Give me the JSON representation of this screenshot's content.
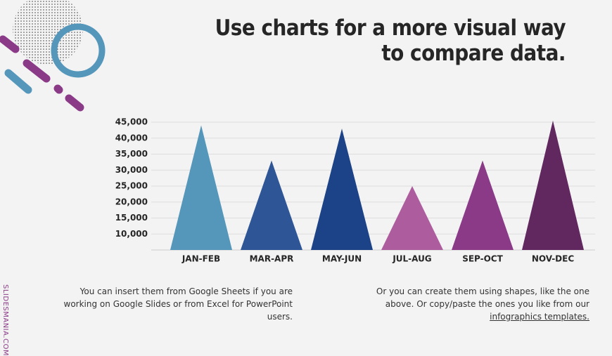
{
  "chart_data": {
    "type": "triangle-bar",
    "title": "Use charts for a more visual way to compare data.",
    "categories": [
      "JAN-FEB",
      "MAR-APR",
      "MAY-JUN",
      "JUL-AUG",
      "SEP-OCT",
      "NOV-DEC"
    ],
    "values": [
      44000,
      33000,
      43000,
      25000,
      33000,
      45500
    ],
    "colors": [
      "#5596bb",
      "#2e5596",
      "#1c4287",
      "#ad5c9e",
      "#8a3a87",
      "#61275f"
    ],
    "ylim": [
      5000,
      45000
    ],
    "yticks": [
      {
        "value": 10000,
        "label": "10,000"
      },
      {
        "value": 15000,
        "label": "15,000"
      },
      {
        "value": 20000,
        "label": "20,000"
      },
      {
        "value": 25000,
        "label": "25,000"
      },
      {
        "value": 30000,
        "label": "30,000"
      },
      {
        "value": 35000,
        "label": "35,000"
      },
      {
        "value": 40000,
        "label": "40,000"
      },
      {
        "value": 45000,
        "label": "45,000"
      }
    ],
    "grid": true
  },
  "notes": {
    "left": "You can insert them from Google Sheets if you are working on Google Slides or from Excel for PowerPoint users.",
    "right": "Or you can create them using shapes, like the one above. Or copy/paste the ones you like from our ",
    "right_link": "infographics templates."
  },
  "brand": "SLIDESMANIA.COM"
}
